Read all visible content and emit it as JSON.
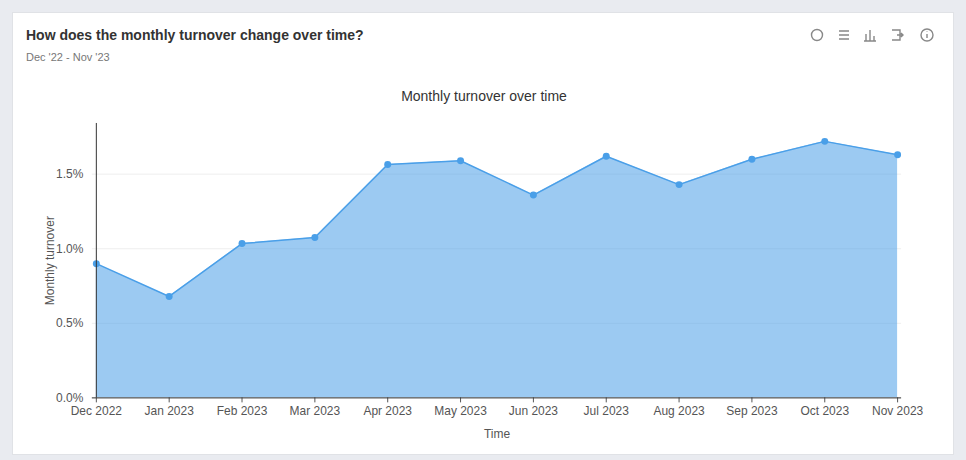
{
  "chart_data": {
    "type": "area",
    "title": "How does the monthly turnover change over time?",
    "subtitle": "Dec '22 - Nov '23",
    "chart_title": "Monthly turnover over time",
    "x_label": "Time",
    "y_label": "Monthly turnover",
    "categories": [
      "Dec 2022",
      "Jan 2023",
      "Feb 2023",
      "Mar 2023",
      "Apr 2023",
      "May 2023",
      "Jun 2023",
      "Jul 2023",
      "Aug 2023",
      "Sep 2023",
      "Oct 2023",
      "Nov 2023"
    ],
    "values": [
      0.9,
      0.68,
      1.035,
      1.075,
      1.565,
      1.59,
      1.36,
      1.62,
      1.43,
      1.6,
      1.72,
      1.63
    ],
    "color": "#4a9fe8",
    "marker": "circle",
    "ylim": [
      0,
      1.84
    ],
    "yticks": [
      {
        "value": 0,
        "label": "0.0%"
      },
      {
        "value": 0.5,
        "label": "0.5%"
      },
      {
        "value": 1,
        "label": "1.0%"
      },
      {
        "value": 1.5,
        "label": "1.5%"
      }
    ],
    "grid": true
  }
}
